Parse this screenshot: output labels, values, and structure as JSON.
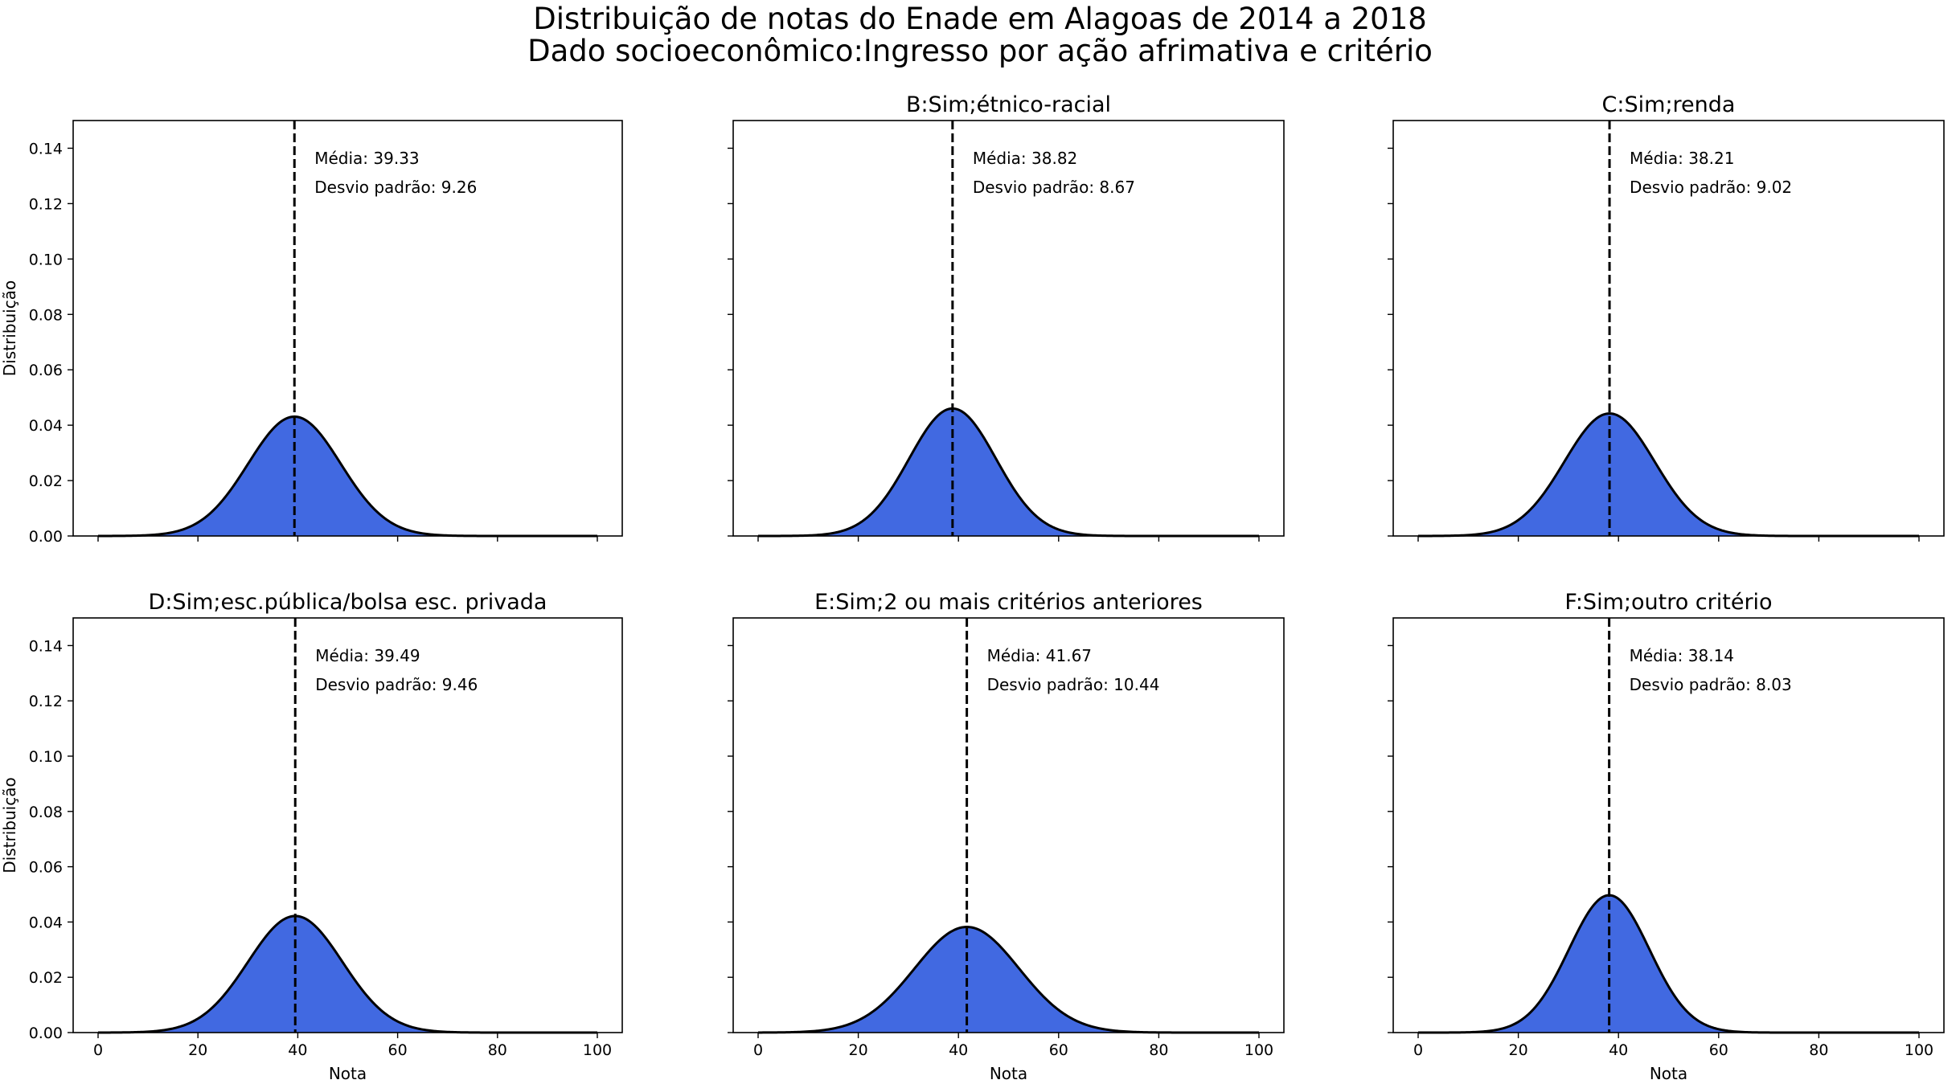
{
  "figure": {
    "title_line1": "Distribuição de notas do Enade em Alagoas de 2014 a 2018",
    "title_line2": "Dado socioeconômico:Ingresso por ação afrimativa e critério"
  },
  "colors": {
    "fill": "#4169e1",
    "line": "#000000",
    "mean_line": "#000000"
  },
  "chart_data": [
    {
      "type": "area",
      "title": "",
      "mean": 39.33,
      "std": 9.26,
      "mean_label": "Média: 39.33",
      "std_label": "Desvio padrão: 9.26",
      "xlim": [
        0,
        100
      ],
      "ylim": [
        0,
        0.15
      ],
      "xticks": [
        0,
        20,
        40,
        60,
        80,
        100
      ],
      "yticks": [
        0.0,
        0.02,
        0.04,
        0.06,
        0.08,
        0.1,
        0.12,
        0.14
      ],
      "xlabel": "",
      "ylabel": "Distribuição",
      "show_xticklabels": false,
      "show_yticklabels": true
    },
    {
      "type": "area",
      "title": "B:Sim;étnico-racial",
      "mean": 38.82,
      "std": 8.67,
      "mean_label": "Média: 38.82",
      "std_label": "Desvio padrão: 8.67",
      "xlim": [
        0,
        100
      ],
      "ylim": [
        0,
        0.15
      ],
      "xticks": [
        0,
        20,
        40,
        60,
        80,
        100
      ],
      "yticks": [
        0.0,
        0.02,
        0.04,
        0.06,
        0.08,
        0.1,
        0.12,
        0.14
      ],
      "xlabel": "",
      "ylabel": "",
      "show_xticklabels": false,
      "show_yticklabels": false
    },
    {
      "type": "area",
      "title": "C:Sim;renda",
      "mean": 38.21,
      "std": 9.02,
      "mean_label": "Média: 38.21",
      "std_label": "Desvio padrão: 9.02",
      "xlim": [
        0,
        100
      ],
      "ylim": [
        0,
        0.15
      ],
      "xticks": [
        0,
        20,
        40,
        60,
        80,
        100
      ],
      "yticks": [
        0.0,
        0.02,
        0.04,
        0.06,
        0.08,
        0.1,
        0.12,
        0.14
      ],
      "xlabel": "",
      "ylabel": "",
      "show_xticklabels": false,
      "show_yticklabels": false
    },
    {
      "type": "area",
      "title": "D:Sim;esc.pública/bolsa esc. privada",
      "mean": 39.49,
      "std": 9.46,
      "mean_label": "Média: 39.49",
      "std_label": "Desvio padrão: 9.46",
      "xlim": [
        0,
        100
      ],
      "ylim": [
        0,
        0.15
      ],
      "xticks": [
        0,
        20,
        40,
        60,
        80,
        100
      ],
      "yticks": [
        0.0,
        0.02,
        0.04,
        0.06,
        0.08,
        0.1,
        0.12,
        0.14
      ],
      "xlabel": "Nota",
      "ylabel": "Distribuição",
      "show_xticklabels": true,
      "show_yticklabels": true
    },
    {
      "type": "area",
      "title": "E:Sim;2 ou mais critérios anteriores",
      "mean": 41.67,
      "std": 10.44,
      "mean_label": "Média: 41.67",
      "std_label": "Desvio padrão: 10.44",
      "xlim": [
        0,
        100
      ],
      "ylim": [
        0,
        0.15
      ],
      "xticks": [
        0,
        20,
        40,
        60,
        80,
        100
      ],
      "yticks": [
        0.0,
        0.02,
        0.04,
        0.06,
        0.08,
        0.1,
        0.12,
        0.14
      ],
      "xlabel": "Nota",
      "ylabel": "",
      "show_xticklabels": true,
      "show_yticklabels": false
    },
    {
      "type": "area",
      "title": "F:Sim;outro critério",
      "mean": 38.14,
      "std": 8.03,
      "mean_label": "Média: 38.14",
      "std_label": "Desvio padrão: 8.03",
      "xlim": [
        0,
        100
      ],
      "ylim": [
        0,
        0.15
      ],
      "xticks": [
        0,
        20,
        40,
        60,
        80,
        100
      ],
      "yticks": [
        0.0,
        0.02,
        0.04,
        0.06,
        0.08,
        0.1,
        0.12,
        0.14
      ],
      "xlabel": "Nota",
      "ylabel": "",
      "show_xticklabels": true,
      "show_yticklabels": false
    }
  ]
}
